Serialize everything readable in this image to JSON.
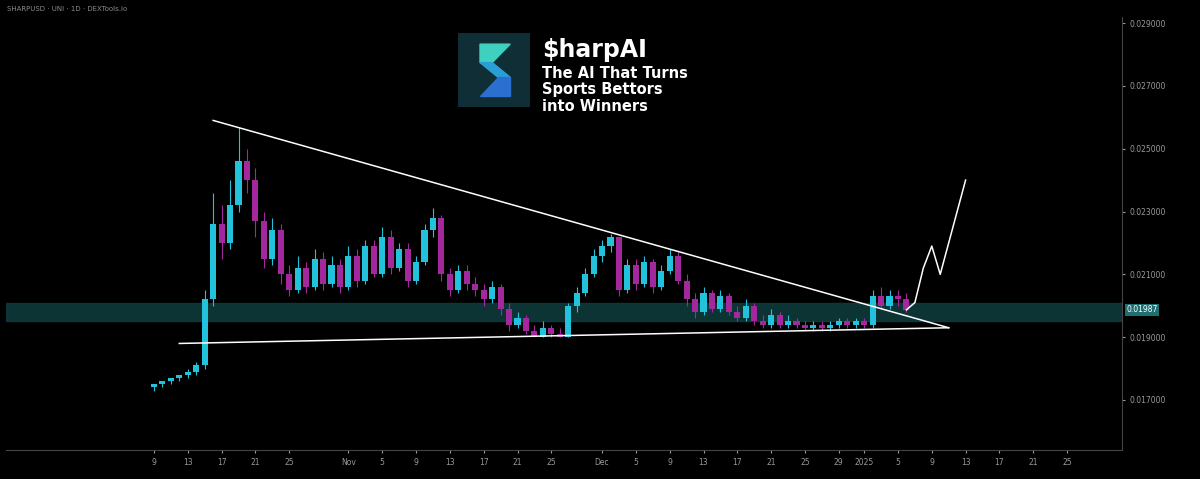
{
  "chart_data": {
    "type": "candlestick",
    "title": "$harpAI",
    "subtitle": "The AI That Turns\nSports Bettors\ninto Winners",
    "annotations": [
      "SHARPUSD · UNI · 1D · DEXTools.io"
    ],
    "categories": [
      null,
      null,
      null,
      null,
      null,
      null,
      null,
      null,
      null,
      null,
      null,
      null,
      null,
      null,
      null,
      null,
      null,
      "9",
      null,
      null,
      null,
      "13",
      null,
      null,
      null,
      "17",
      null,
      null,
      null,
      "21",
      null,
      null,
      null,
      "25",
      null,
      null,
      null,
      null,
      null,
      null,
      "Nov",
      null,
      null,
      null,
      "5",
      null,
      null,
      null,
      "9",
      null,
      null,
      null,
      "13",
      null,
      null,
      null,
      "17",
      null,
      null,
      null,
      "21",
      null,
      null,
      null,
      "25",
      null,
      null,
      null,
      null,
      null,
      "Dec",
      null,
      null,
      null,
      "5",
      null,
      null,
      null,
      "9",
      null,
      null,
      null,
      "13",
      null,
      null,
      null,
      "17",
      null,
      null,
      null,
      "21",
      null,
      null,
      null,
      "25",
      null,
      null,
      null,
      "29",
      null,
      null,
      "2025",
      null,
      null,
      null,
      "5",
      null,
      null,
      null,
      "9",
      null,
      null,
      null,
      "13",
      null,
      null,
      null,
      "17",
      null,
      null,
      null,
      "21",
      null,
      null,
      null,
      "25",
      null,
      null,
      null,
      null,
      null,
      null
    ],
    "open": [
      null,
      null,
      null,
      null,
      null,
      null,
      null,
      null,
      null,
      null,
      null,
      null,
      null,
      null,
      null,
      null,
      null,
      0.0174,
      0.0175,
      0.0176,
      0.0177,
      0.0178,
      0.0179,
      0.0181,
      0.0202,
      0.0226,
      0.022,
      0.0232,
      0.0246,
      0.024,
      0.0227,
      0.0215,
      0.0224,
      0.021,
      0.0205,
      0.0212,
      0.0206,
      0.0215,
      0.0207,
      0.0213,
      0.0206,
      0.0216,
      0.0208,
      0.0219,
      0.021,
      0.0222,
      0.0212,
      0.0218,
      0.0208,
      0.0214,
      0.0224,
      0.0228,
      0.021,
      0.0205,
      0.0211,
      0.0207,
      0.0205,
      0.0202,
      0.0206,
      0.0199,
      0.0194,
      0.0196,
      0.0192,
      0.019,
      0.0193,
      0.0191,
      0.019,
      0.02,
      0.0204,
      0.021,
      0.0216,
      0.0219,
      0.0222,
      0.0205,
      0.0213,
      0.0207,
      0.0214,
      0.0206,
      0.0211,
      0.0216,
      0.0208,
      0.0202,
      0.0198,
      0.0204,
      0.0199,
      0.0203,
      0.0198,
      0.0196,
      0.02,
      0.0195,
      0.0194,
      0.0197,
      0.0194,
      0.0195,
      0.0194,
      0.0193,
      0.0194,
      0.0193,
      0.0194,
      0.0195,
      0.0194,
      0.0195,
      0.0194,
      0.0203,
      0.02,
      0.0203,
      0.0202,
      null,
      null,
      null,
      null,
      null,
      null,
      null,
      null,
      null,
      null,
      null,
      null,
      null,
      null,
      null,
      null,
      null,
      null,
      null,
      null,
      null,
      null,
      null,
      null,
      null
    ],
    "high": [
      null,
      null,
      null,
      null,
      null,
      null,
      null,
      null,
      null,
      null,
      null,
      null,
      null,
      null,
      null,
      null,
      null,
      0.0175,
      0.0176,
      0.0177,
      0.0178,
      0.018,
      0.0182,
      0.0205,
      0.0236,
      0.0232,
      0.024,
      0.0257,
      0.025,
      0.0244,
      0.023,
      0.0228,
      0.0226,
      0.0213,
      0.0216,
      0.0214,
      0.0218,
      0.0217,
      0.0216,
      0.0215,
      0.0219,
      0.0218,
      0.0221,
      0.0221,
      0.0225,
      0.0224,
      0.022,
      0.022,
      0.0216,
      0.0226,
      0.0231,
      0.0229,
      0.0212,
      0.0213,
      0.0213,
      0.0209,
      0.0207,
      0.0208,
      0.0207,
      0.0201,
      0.0198,
      0.0197,
      0.0194,
      0.0195,
      0.0194,
      0.0193,
      0.0201,
      0.0206,
      0.0212,
      0.0218,
      0.0221,
      0.0223,
      0.0222,
      0.0215,
      0.0215,
      0.0216,
      0.0215,
      0.0213,
      0.0218,
      0.0217,
      0.021,
      0.0204,
      0.0206,
      0.0205,
      0.0205,
      0.0204,
      0.02,
      0.0202,
      0.0201,
      0.0197,
      0.0199,
      0.0198,
      0.0197,
      0.0196,
      0.0195,
      0.0195,
      0.0195,
      0.0195,
      0.0196,
      0.0196,
      0.0196,
      0.0196,
      0.0205,
      0.0206,
      0.0205,
      0.0205,
      0.0204,
      null,
      null,
      null,
      null,
      null,
      null,
      null,
      null,
      null,
      null,
      null,
      null,
      null,
      null,
      null,
      null,
      null,
      null,
      null,
      null,
      null,
      null,
      null,
      null,
      null
    ],
    "low": [
      null,
      null,
      null,
      null,
      null,
      null,
      null,
      null,
      null,
      null,
      null,
      null,
      null,
      null,
      null,
      null,
      null,
      0.0173,
      0.0174,
      0.0175,
      0.0176,
      0.0177,
      0.0178,
      0.018,
      0.02,
      0.0215,
      0.0218,
      0.023,
      0.0236,
      0.0222,
      0.0212,
      0.0213,
      0.0207,
      0.0203,
      0.0204,
      0.0204,
      0.0205,
      0.0205,
      0.0206,
      0.0204,
      0.0205,
      0.0206,
      0.0207,
      0.0209,
      0.0209,
      0.021,
      0.0211,
      0.0206,
      0.0207,
      0.0213,
      0.0222,
      0.0208,
      0.0203,
      0.0204,
      0.0205,
      0.0203,
      0.02,
      0.0201,
      0.0197,
      0.0192,
      0.0193,
      0.0191,
      0.019,
      0.019,
      0.019,
      0.019,
      0.019,
      0.0198,
      0.0203,
      0.0209,
      0.0214,
      0.0217,
      0.0203,
      0.0204,
      0.0205,
      0.0206,
      0.0204,
      0.0205,
      0.021,
      0.0207,
      0.02,
      0.0196,
      0.0197,
      0.0198,
      0.0198,
      0.0197,
      0.0195,
      0.0195,
      0.0194,
      0.0193,
      0.0193,
      0.0193,
      0.0193,
      0.0193,
      0.0192,
      0.0192,
      0.0192,
      0.0192,
      0.0193,
      0.0193,
      0.0193,
      0.0193,
      0.0193,
      0.0199,
      0.0199,
      0.02,
      0.0198,
      null,
      null,
      null,
      null,
      null,
      null,
      null,
      null,
      null,
      null,
      null,
      null,
      null,
      null,
      null,
      null,
      null,
      null,
      null,
      null,
      null,
      null,
      null,
      null,
      null
    ],
    "close": [
      null,
      null,
      null,
      null,
      null,
      null,
      null,
      null,
      null,
      null,
      null,
      null,
      null,
      null,
      null,
      null,
      null,
      0.0175,
      0.0176,
      0.0177,
      0.0178,
      0.0179,
      0.0181,
      0.0202,
      0.0226,
      0.022,
      0.0232,
      0.0246,
      0.024,
      0.0227,
      0.0215,
      0.0224,
      0.021,
      0.0205,
      0.0212,
      0.0206,
      0.0215,
      0.0207,
      0.0213,
      0.0206,
      0.0216,
      0.0208,
      0.0219,
      0.021,
      0.0222,
      0.0212,
      0.0218,
      0.0208,
      0.0214,
      0.0224,
      0.0228,
      0.021,
      0.0205,
      0.0211,
      0.0207,
      0.0205,
      0.0202,
      0.0206,
      0.0199,
      0.0194,
      0.0196,
      0.0192,
      0.019,
      0.0193,
      0.0191,
      0.019,
      0.02,
      0.0204,
      0.021,
      0.0216,
      0.0219,
      0.0222,
      0.0205,
      0.0213,
      0.0207,
      0.0214,
      0.0206,
      0.0211,
      0.0216,
      0.0208,
      0.0202,
      0.0198,
      0.0204,
      0.0199,
      0.0203,
      0.0198,
      0.0196,
      0.02,
      0.0195,
      0.0194,
      0.0197,
      0.0194,
      0.0195,
      0.0194,
      0.0193,
      0.0194,
      0.0193,
      0.0194,
      0.0195,
      0.0194,
      0.0195,
      0.0194,
      0.0203,
      0.02,
      0.0203,
      0.0202,
      0.01987,
      null,
      null,
      null,
      null,
      null,
      null,
      null,
      null,
      null,
      null,
      null,
      null,
      null,
      null,
      null,
      null,
      null,
      null,
      null,
      null,
      null,
      null,
      null,
      null,
      null
    ],
    "series": [
      {
        "type": "line",
        "color": "#ffffff",
        "values": [
          null,
          null,
          null,
          null,
          null,
          null,
          null,
          null,
          null,
          null,
          null,
          null,
          null,
          null,
          null,
          null,
          null,
          null,
          null,
          null,
          null,
          null,
          null,
          null,
          0.0259,
          null,
          null,
          null,
          null,
          null,
          null,
          null,
          null,
          null,
          null,
          null,
          null,
          null,
          null,
          null,
          null,
          null,
          null,
          null,
          null,
          null,
          null,
          null,
          null,
          null,
          null,
          null,
          null,
          null,
          null,
          null,
          null,
          null,
          null,
          null,
          null,
          null,
          null,
          null,
          null,
          null,
          null,
          null,
          null,
          null,
          null,
          null,
          null,
          null,
          null,
          null,
          null,
          null,
          null,
          null,
          null,
          null,
          null,
          null,
          null,
          null,
          null,
          null,
          null,
          null,
          null,
          null,
          null,
          null,
          null,
          null,
          null,
          null,
          null,
          null,
          null,
          null,
          null,
          null,
          null,
          null,
          null,
          null,
          null,
          null,
          null,
          0.0193,
          null,
          null,
          null,
          null,
          null,
          null,
          null,
          null,
          null,
          null,
          null,
          null,
          null,
          null,
          null,
          null,
          null,
          null,
          null,
          null
        ]
      },
      {
        "type": "line",
        "color": "#ffffff",
        "values": [
          null,
          null,
          null,
          null,
          null,
          null,
          null,
          null,
          null,
          null,
          null,
          null,
          null,
          null,
          null,
          null,
          null,
          null,
          null,
          null,
          0.0188,
          null,
          null,
          null,
          null,
          null,
          null,
          null,
          null,
          null,
          null,
          null,
          null,
          null,
          null,
          null,
          null,
          null,
          null,
          null,
          null,
          null,
          null,
          null,
          null,
          null,
          null,
          null,
          null,
          null,
          null,
          null,
          null,
          null,
          null,
          null,
          null,
          null,
          null,
          null,
          null,
          null,
          null,
          null,
          null,
          null,
          null,
          null,
          null,
          null,
          null,
          null,
          null,
          null,
          null,
          null,
          null,
          null,
          null,
          null,
          null,
          null,
          null,
          null,
          null,
          null,
          null,
          null,
          null,
          null,
          null,
          null,
          null,
          null,
          null,
          null,
          null,
          null,
          null,
          null,
          null,
          null,
          null,
          null,
          null,
          null,
          null,
          null,
          null,
          null,
          null,
          0.0193,
          null,
          null,
          null,
          null,
          null,
          null,
          null,
          null,
          null,
          null,
          null,
          null,
          null,
          null,
          null,
          null,
          null,
          null,
          null,
          null
        ]
      },
      {
        "type": "line",
        "color": "#ffffff",
        "values": [
          null,
          null,
          null,
          null,
          null,
          null,
          null,
          null,
          null,
          null,
          null,
          null,
          null,
          null,
          null,
          null,
          null,
          null,
          null,
          null,
          null,
          null,
          null,
          null,
          null,
          null,
          null,
          null,
          null,
          null,
          null,
          null,
          null,
          null,
          null,
          null,
          null,
          null,
          null,
          null,
          null,
          null,
          null,
          null,
          null,
          null,
          null,
          null,
          null,
          null,
          null,
          null,
          null,
          null,
          null,
          null,
          null,
          null,
          null,
          null,
          null,
          null,
          null,
          null,
          null,
          null,
          null,
          null,
          null,
          null,
          null,
          null,
          null,
          null,
          null,
          null,
          null,
          null,
          null,
          null,
          null,
          null,
          null,
          null,
          null,
          null,
          null,
          null,
          null,
          null,
          null,
          null,
          null,
          null,
          null,
          null,
          null,
          null,
          null,
          null,
          null,
          null,
          null,
          null,
          null,
          null,
          0.01987,
          0.0201,
          0.0212,
          0.0219,
          0.021,
          0.022,
          0.023,
          0.024,
          null,
          null,
          null,
          null,
          null,
          null,
          null,
          null,
          null,
          null,
          null,
          null,
          null,
          null,
          null,
          null,
          null,
          null
        ]
      }
    ],
    "band": [
      0.0195,
      0.0201
    ],
    "price_label": {
      "value": 0.01987,
      "label": "0.01987"
    },
    "ylim": [
      0.0154,
      0.0292
    ],
    "yticks": [
      {
        "value": 0.017,
        "label": "0.017000"
      },
      {
        "value": 0.019,
        "label": "0.019000"
      },
      {
        "value": 0.021,
        "label": "0.021000"
      },
      {
        "value": 0.023,
        "label": "0.023000"
      },
      {
        "value": 0.025,
        "label": "0.025000"
      },
      {
        "value": 0.027,
        "label": "0.027000"
      },
      {
        "value": 0.029,
        "label": "0.029000"
      }
    ],
    "grid": false
  }
}
